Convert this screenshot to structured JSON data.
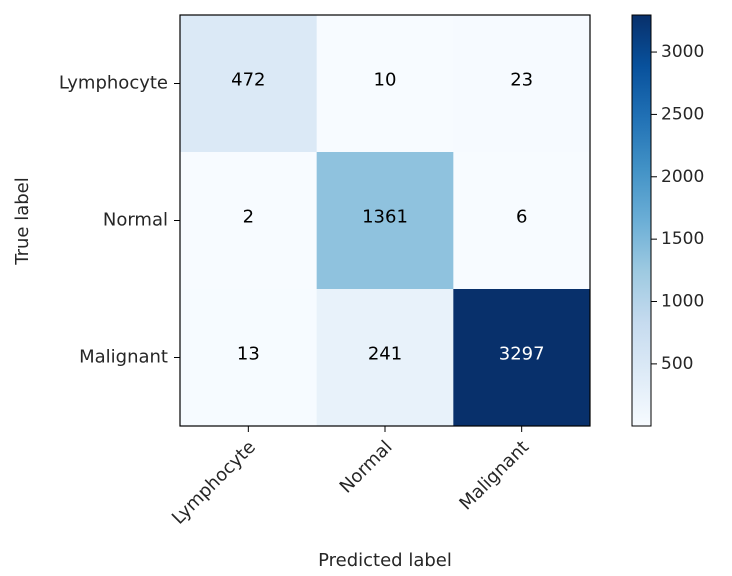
{
  "chart_data": {
    "type": "heatmap",
    "title": "",
    "xlabel": "Predicted label",
    "ylabel": "True label",
    "x_categories": [
      "Lymphocyte",
      "Normal",
      "Malignant"
    ],
    "y_categories": [
      "Lymphocyte",
      "Normal",
      "Malignant"
    ],
    "matrix": [
      [
        472,
        10,
        23
      ],
      [
        2,
        1361,
        6
      ],
      [
        13,
        241,
        3297
      ]
    ],
    "colormap": "Blues",
    "colorbar": {
      "range": [
        2,
        3297
      ],
      "ticks": [
        500,
        1000,
        1500,
        2000,
        2500,
        3000
      ]
    },
    "grid": false
  }
}
